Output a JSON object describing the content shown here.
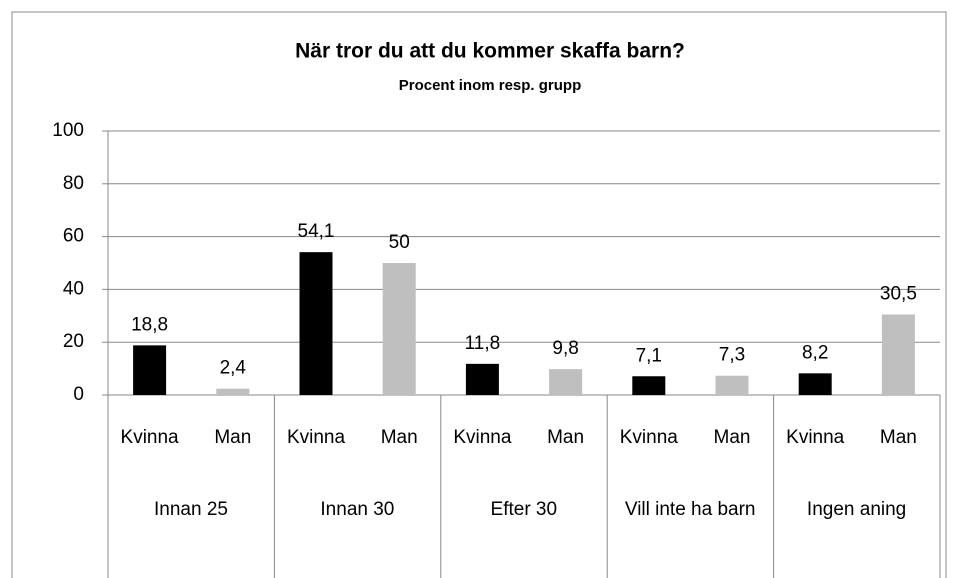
{
  "chart_data": {
    "type": "bar",
    "title": "När tror du att du kommer skaffa barn?",
    "subtitle": "Procent inom resp. grupp",
    "categories": [
      "Innan 25",
      "Innan 30",
      "Efter 30",
      "Vill inte ha barn",
      "Ingen aning"
    ],
    "series": [
      {
        "name": "Kvinna",
        "color": "#000000",
        "values": [
          18.8,
          54.1,
          11.8,
          7.1,
          8.2
        ],
        "value_labels": [
          "18,8",
          "54,1",
          "11,8",
          "7,1",
          "8,2"
        ]
      },
      {
        "name": "Man",
        "color": "#bfbfbf",
        "values": [
          2.4,
          50,
          9.8,
          7.3,
          30.5
        ],
        "value_labels": [
          "2,4",
          "50",
          "9,8",
          "7,3",
          "30,5"
        ]
      }
    ],
    "ylim": [
      0,
      100
    ],
    "yticks": [
      0,
      20,
      40,
      60,
      80,
      100
    ],
    "grid": true
  }
}
